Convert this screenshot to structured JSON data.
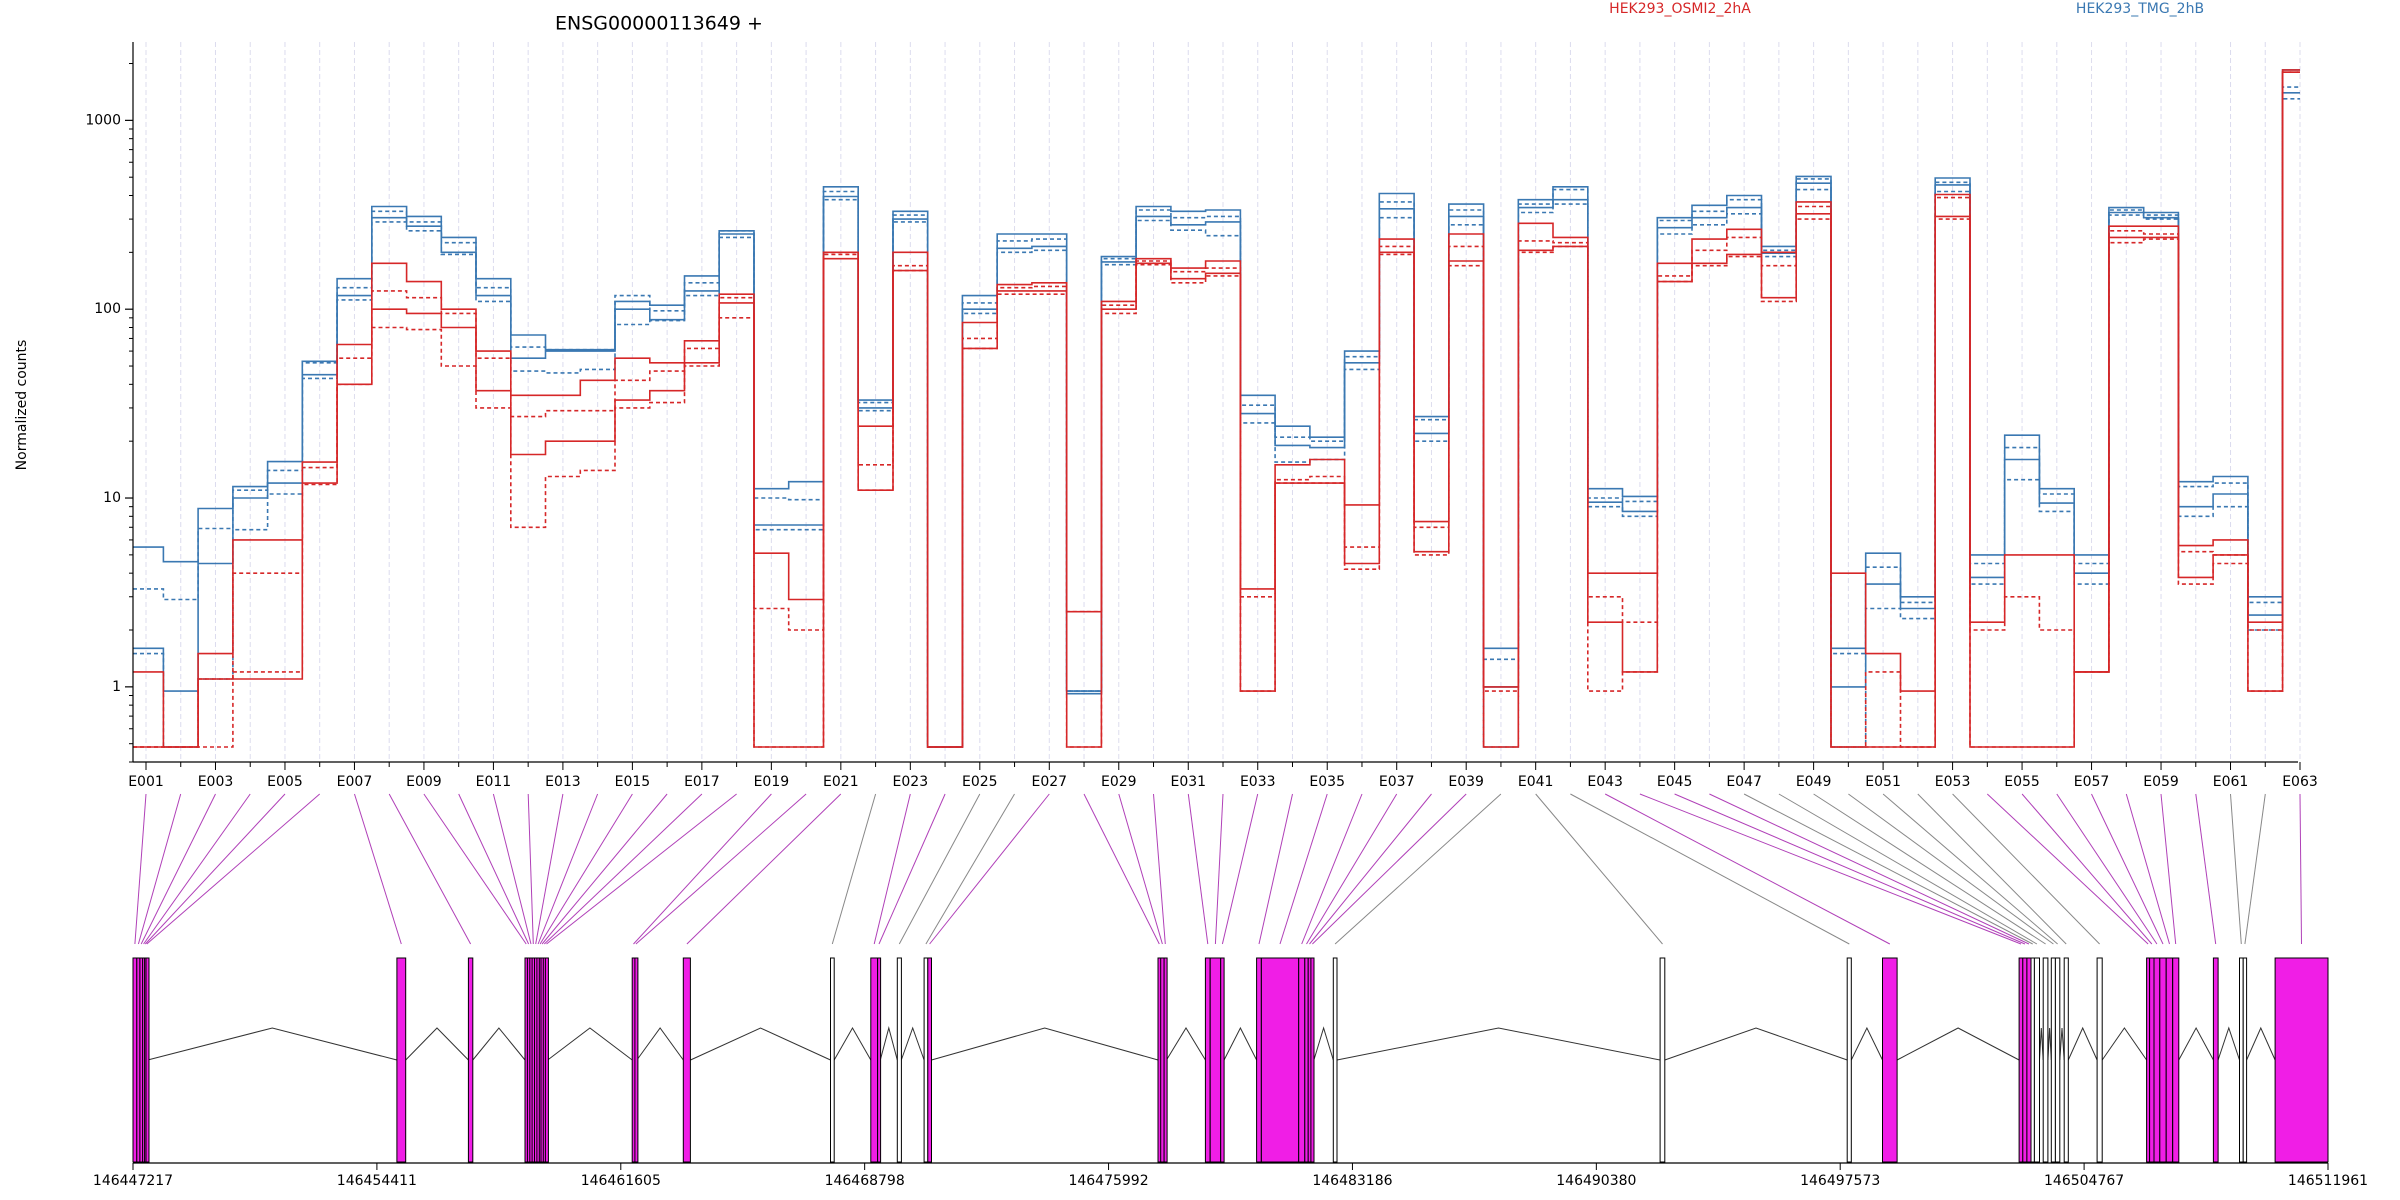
{
  "chart_data": {
    "type": "line",
    "title": "ENSG00000113649 +",
    "ylabel": "Normalized counts",
    "xlabel": "",
    "y_scale": "log",
    "ylim": [
      0.4,
      2600
    ],
    "y_ticks": [
      1,
      10,
      100,
      1000
    ],
    "y_tick_labels": [
      "1",
      "10",
      "100",
      "1000"
    ],
    "x_tick_labels": [
      "E001",
      "E003",
      "E005",
      "E007",
      "E009",
      "E011",
      "E013",
      "E015",
      "E017",
      "E019",
      "E021",
      "E023",
      "E025",
      "E027",
      "E029",
      "E031",
      "E033",
      "E035",
      "E037",
      "E039",
      "E041",
      "E043",
      "E045",
      "E047",
      "E049",
      "E051",
      "E053",
      "E055",
      "E057",
      "E059",
      "E061",
      "E063"
    ],
    "exons": [
      "E001",
      "E002",
      "E003",
      "E004",
      "E005",
      "E006",
      "E007",
      "E008",
      "E009",
      "E010",
      "E011",
      "E012",
      "E013",
      "E014",
      "E015",
      "E016",
      "E017",
      "E018",
      "E019",
      "E020",
      "E021",
      "E022",
      "E023",
      "E024",
      "E025",
      "E026",
      "E027",
      "E028",
      "E029",
      "E030",
      "E031",
      "E032",
      "E033",
      "E034",
      "E035",
      "E036",
      "E037",
      "E038",
      "E039",
      "E040",
      "E041",
      "E042",
      "E043",
      "E044",
      "E045",
      "E046",
      "E047",
      "E048",
      "E049",
      "E050",
      "E051",
      "E052",
      "E053",
      "E054",
      "E055",
      "E056",
      "E057",
      "E058",
      "E059",
      "E060",
      "E061",
      "E062",
      "E063"
    ],
    "legend": [
      {
        "name": "HEK293_OSMI2_2hA",
        "color": "#d62728"
      },
      {
        "name": "HEK293_TMG_2hB",
        "color": "#3a78b2"
      }
    ],
    "series": [
      {
        "group": "HEK293_TMG_2hB",
        "color": "#3a78b2",
        "dash": false,
        "values": [
          5.5,
          4.6,
          8.8,
          11.5,
          15.6,
          53,
          145,
          350,
          310,
          240,
          145,
          73,
          61,
          61,
          110,
          105,
          150,
          260,
          11.2,
          12.2,
          445,
          33,
          330,
          0.48,
          118,
          250,
          250,
          0.95,
          190,
          350,
          330,
          335,
          35,
          24,
          21,
          60,
          410,
          27,
          360,
          1.6,
          380,
          445,
          11.2,
          10.2,
          305,
          355,
          400,
          215,
          505,
          1.6,
          5.1,
          3.0,
          495,
          5.0,
          21.5,
          11.2,
          5.0,
          345,
          325,
          12.2,
          13.0,
          3.0,
          1850
        ]
      },
      {
        "group": "HEK293_TMG_2hB",
        "color": "#3a78b2",
        "dash": true,
        "values": [
          3.3,
          2.9,
          6.9,
          11,
          14,
          52,
          130,
          330,
          290,
          225,
          130,
          63,
          61,
          61,
          118,
          98,
          138,
          260,
          10,
          9.8,
          420,
          32,
          315,
          0.48,
          108,
          230,
          235,
          0.95,
          185,
          335,
          305,
          310,
          31,
          21,
          20,
          56,
          370,
          26,
          335,
          1.4,
          360,
          430,
          10,
          9.6,
          295,
          330,
          380,
          205,
          490,
          1.5,
          4.3,
          2.8,
          470,
          4.5,
          18.5,
          10.5,
          4.5,
          335,
          315,
          11.5,
          12.0,
          2.8,
          1500
        ]
      },
      {
        "group": "HEK293_TMG_2hB",
        "color": "#3a78b2",
        "dash": false,
        "values": [
          1.6,
          0.95,
          4.5,
          10,
          12,
          45,
          118,
          305,
          275,
          200,
          118,
          55,
          60,
          60,
          100,
          88,
          125,
          250,
          7.2,
          7.2,
          395,
          30,
          300,
          0.48,
          100,
          210,
          215,
          0.92,
          178,
          310,
          280,
          290,
          28,
          19,
          18.5,
          52,
          340,
          22,
          310,
          1.0,
          345,
          380,
          9.5,
          8.5,
          270,
          305,
          345,
          198,
          465,
          1.0,
          3.5,
          2.6,
          455,
          3.8,
          16,
          9.4,
          4.0,
          325,
          305,
          9.0,
          10.5,
          2.4,
          1400
        ]
      },
      {
        "group": "HEK293_TMG_2hB",
        "color": "#3a78b2",
        "dash": true,
        "values": [
          1.5,
          0.48,
          1.1,
          6.8,
          10.5,
          43,
          112,
          290,
          260,
          195,
          110,
          47,
          46,
          48,
          83,
          87,
          118,
          240,
          6.8,
          6.8,
          380,
          29,
          290,
          0.48,
          95,
          200,
          205,
          0.95,
          172,
          295,
          262,
          245,
          25,
          15.5,
          16,
          48,
          305,
          20,
          280,
          0.48,
          325,
          360,
          9.0,
          8.0,
          250,
          280,
          320,
          190,
          430,
          0.48,
          2.6,
          2.3,
          420,
          3.5,
          12.5,
          8.5,
          3.5,
          315,
          300,
          8.0,
          9.0,
          2.0,
          1300
        ]
      },
      {
        "group": "HEK293_OSMI2_2hA",
        "color": "#d62728",
        "dash": false,
        "values": [
          1.2,
          0.48,
          1.5,
          6.0,
          6.0,
          15.5,
          65,
          175,
          140,
          100,
          60,
          35,
          35,
          42,
          55,
          52,
          68,
          120,
          5.1,
          2.9,
          200,
          24,
          200,
          0.48,
          85,
          135,
          138,
          2.5,
          110,
          185,
          165,
          180,
          3.3,
          15,
          16,
          9.2,
          235,
          7.5,
          250,
          1.0,
          285,
          240,
          4.0,
          4.0,
          175,
          235,
          265,
          200,
          370,
          4.0,
          1.5,
          0.95,
          405,
          2.2,
          5.0,
          5.0,
          1.2,
          275,
          275,
          5.6,
          6.0,
          2.2,
          1850
        ]
      },
      {
        "group": "HEK293_OSMI2_2hA",
        "color": "#d62728",
        "dash": true,
        "values": [
          0.48,
          0.48,
          1.1,
          4.0,
          4.0,
          14.5,
          55,
          125,
          115,
          95,
          55,
          27,
          29,
          29,
          42,
          47,
          62,
          115,
          2.6,
          2.0,
          195,
          15,
          170,
          0.48,
          70,
          130,
          132,
          2.5,
          105,
          180,
          158,
          165,
          3.0,
          12.5,
          13,
          5.5,
          215,
          7.0,
          215,
          0.95,
          230,
          225,
          3.0,
          2.2,
          150,
          205,
          240,
          170,
          350,
          0.48,
          1.2,
          0.48,
          390,
          2.0,
          3.0,
          2.0,
          1.2,
          260,
          250,
          5.2,
          5.0,
          2.0,
          1800
        ]
      },
      {
        "group": "HEK293_OSMI2_2hA",
        "color": "#d62728",
        "dash": false,
        "values": [
          0.48,
          0.48,
          1.1,
          1.1,
          1.1,
          12,
          40,
          100,
          95,
          80,
          37,
          17,
          20,
          20,
          33,
          37,
          52,
          108,
          0.48,
          0.48,
          185,
          11,
          160,
          0.48,
          62,
          125,
          125,
          0.48,
          100,
          175,
          145,
          155,
          0.95,
          12,
          12,
          4.5,
          200,
          5.2,
          180,
          0.48,
          205,
          215,
          2.2,
          1.2,
          140,
          175,
          195,
          115,
          320,
          0.48,
          0.48,
          0.48,
          310,
          0.48,
          0.48,
          0.48,
          1.2,
          240,
          240,
          3.8,
          5.0,
          0.95,
          1800
        ]
      },
      {
        "group": "HEK293_OSMI2_2hA",
        "color": "#d62728",
        "dash": true,
        "values": [
          0.48,
          0.48,
          0.48,
          1.2,
          1.2,
          11.8,
          40,
          80,
          78,
          50,
          30,
          7.0,
          13,
          14,
          30,
          32,
          50,
          90,
          0.48,
          0.48,
          200,
          11,
          160,
          0.48,
          62,
          120,
          120,
          0.48,
          95,
          172,
          138,
          150,
          0.95,
          12,
          12,
          4.2,
          195,
          5.0,
          170,
          0.48,
          200,
          215,
          0.95,
          1.2,
          140,
          170,
          190,
          110,
          300,
          0.48,
          0.48,
          0.48,
          300,
          0.48,
          0.48,
          0.48,
          1.2,
          225,
          235,
          3.5,
          4.5,
          0.95,
          1800
        ]
      }
    ],
    "genomic_axis": {
      "tick_labels": [
        "146447217",
        "146454411",
        "146461605",
        "146468798",
        "146475992",
        "146483186",
        "146490380",
        "146497573",
        "146504767",
        "146511961"
      ],
      "ticks": [
        146447217,
        146454411,
        146461605,
        146468798,
        146475992,
        146483186,
        146490380,
        146497573,
        146504767,
        146511961
      ],
      "range": [
        146447217,
        146511961
      ]
    },
    "exon_colors": {
      "significant": "#f01ee6",
      "not_significant": "#ffffff",
      "outline": "#000000",
      "connector_significant": "#b040b8",
      "connector_other": "#888888"
    },
    "exon_coordinates": [
      {
        "id": "E001",
        "start": 146447217,
        "end": 146447330,
        "significant": true
      },
      {
        "id": "E002",
        "start": 146447330,
        "end": 146447420,
        "significant": true
      },
      {
        "id": "E003",
        "start": 146447420,
        "end": 146447500,
        "significant": true
      },
      {
        "id": "E004",
        "start": 146447500,
        "end": 146447560,
        "significant": true
      },
      {
        "id": "E005",
        "start": 146447560,
        "end": 146447600,
        "significant": true
      },
      {
        "id": "E006",
        "start": 146447600,
        "end": 146447650,
        "significant": true
      },
      {
        "id": "E007",
        "start": 146455000,
        "end": 146455260,
        "significant": true
      },
      {
        "id": "E008",
        "start": 146457110,
        "end": 146457240,
        "significant": true
      },
      {
        "id": "E009",
        "start": 146458780,
        "end": 146458850,
        "significant": true
      },
      {
        "id": "E010",
        "start": 146458850,
        "end": 146458920,
        "significant": true
      },
      {
        "id": "E011",
        "start": 146458920,
        "end": 146458990,
        "significant": true
      },
      {
        "id": "E012",
        "start": 146458990,
        "end": 146459060,
        "significant": true
      },
      {
        "id": "E013",
        "start": 146459060,
        "end": 146459130,
        "significant": true
      },
      {
        "id": "E014",
        "start": 146459130,
        "end": 146459200,
        "significant": true
      },
      {
        "id": "E015",
        "start": 146459200,
        "end": 146459250,
        "significant": true
      },
      {
        "id": "E016",
        "start": 146459250,
        "end": 146459320,
        "significant": true
      },
      {
        "id": "E017",
        "start": 146459320,
        "end": 146459380,
        "significant": true
      },
      {
        "id": "E018",
        "start": 146459380,
        "end": 146459450,
        "significant": true
      },
      {
        "id": "E019",
        "start": 146461940,
        "end": 146462020,
        "significant": true
      },
      {
        "id": "E020",
        "start": 146462020,
        "end": 146462080,
        "significant": true
      },
      {
        "id": "E021",
        "start": 146463450,
        "end": 146463660,
        "significant": true
      },
      {
        "id": "E022",
        "start": 146467790,
        "end": 146467900,
        "significant": false
      },
      {
        "id": "E023",
        "start": 146468980,
        "end": 146469180,
        "significant": true
      },
      {
        "id": "E024",
        "start": 146469180,
        "end": 146469260,
        "significant": true
      },
      {
        "id": "E025",
        "start": 146469760,
        "end": 146469880,
        "significant": false
      },
      {
        "id": "E026",
        "start": 146470550,
        "end": 146470660,
        "significant": false
      },
      {
        "id": "E027",
        "start": 146470660,
        "end": 146470770,
        "significant": true
      },
      {
        "id": "E028",
        "start": 146477450,
        "end": 146477530,
        "significant": true
      },
      {
        "id": "E029",
        "start": 146477530,
        "end": 146477630,
        "significant": true
      },
      {
        "id": "E030",
        "start": 146477630,
        "end": 146477700,
        "significant": true
      },
      {
        "id": "E031",
        "start": 146478850,
        "end": 146478990,
        "significant": true
      },
      {
        "id": "E032",
        "start": 146478990,
        "end": 146479300,
        "significant": true
      },
      {
        "id": "E033",
        "start": 146479300,
        "end": 146479400,
        "significant": true
      },
      {
        "id": "E034",
        "start": 146480360,
        "end": 146480500,
        "significant": true
      },
      {
        "id": "E035",
        "start": 146480500,
        "end": 146481600,
        "significant": true
      },
      {
        "id": "E036",
        "start": 146481600,
        "end": 146481780,
        "significant": true
      },
      {
        "id": "E037",
        "start": 146481780,
        "end": 146481880,
        "significant": true
      },
      {
        "id": "E038",
        "start": 146481880,
        "end": 146481960,
        "significant": true
      },
      {
        "id": "E039",
        "start": 146481960,
        "end": 146482050,
        "significant": true
      },
      {
        "id": "E040",
        "start": 146482620,
        "end": 146482730,
        "significant": false
      },
      {
        "id": "E041",
        "start": 146492260,
        "end": 146492400,
        "significant": false
      },
      {
        "id": "E042",
        "start": 146497780,
        "end": 146497900,
        "significant": false
      },
      {
        "id": "E043",
        "start": 146498820,
        "end": 146499250,
        "significant": true
      },
      {
        "id": "E044",
        "start": 146502850,
        "end": 146502960,
        "significant": true
      },
      {
        "id": "E045",
        "start": 146502960,
        "end": 146503080,
        "significant": true
      },
      {
        "id": "E046",
        "start": 146503080,
        "end": 146503200,
        "significant": true
      },
      {
        "id": "E047",
        "start": 146503200,
        "end": 146503300,
        "significant": false
      },
      {
        "id": "E048",
        "start": 146503300,
        "end": 146503450,
        "significant": false
      },
      {
        "id": "E049",
        "start": 146503560,
        "end": 146503700,
        "significant": false
      },
      {
        "id": "E050",
        "start": 146503800,
        "end": 146503920,
        "significant": false
      },
      {
        "id": "E051",
        "start": 146503920,
        "end": 146504050,
        "significant": false
      },
      {
        "id": "E052",
        "start": 146504180,
        "end": 146504300,
        "significant": false
      },
      {
        "id": "E053",
        "start": 146505150,
        "end": 146505300,
        "significant": false
      },
      {
        "id": "E054",
        "start": 146506610,
        "end": 146506700,
        "significant": true
      },
      {
        "id": "E055",
        "start": 146506700,
        "end": 146506830,
        "significant": true
      },
      {
        "id": "E056",
        "start": 146506830,
        "end": 146507000,
        "significant": true
      },
      {
        "id": "E057",
        "start": 146507000,
        "end": 146507190,
        "significant": true
      },
      {
        "id": "E058",
        "start": 146507190,
        "end": 146507380,
        "significant": true
      },
      {
        "id": "E059",
        "start": 146507380,
        "end": 146507560,
        "significant": true
      },
      {
        "id": "E060",
        "start": 146508580,
        "end": 146508720,
        "significant": true
      },
      {
        "id": "E061",
        "start": 146509350,
        "end": 146509460,
        "significant": false
      },
      {
        "id": "E062",
        "start": 146509460,
        "end": 146509560,
        "significant": false
      },
      {
        "id": "E063",
        "start": 146510400,
        "end": 146511961,
        "significant": true
      }
    ]
  }
}
